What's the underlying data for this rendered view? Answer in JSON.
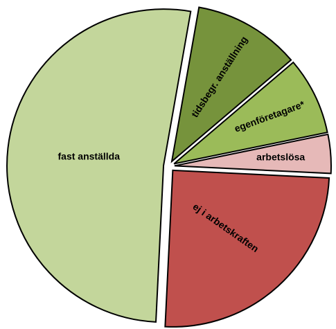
{
  "chart_data": {
    "type": "pie",
    "categories": [
      "tidsbegr. anställning",
      "egenföretagare*",
      "arbetslösa",
      "ej i arbetskraften",
      "fast anställda"
    ],
    "values": [
      11,
      8,
      4,
      25,
      52
    ],
    "colors": [
      "#76933c",
      "#9bbb59",
      "#e6b9b8",
      "#c0504d",
      "#c3d69b"
    ]
  }
}
